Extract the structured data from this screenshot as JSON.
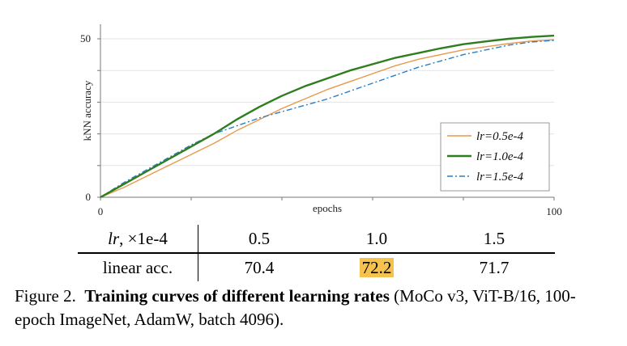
{
  "chart_data": {
    "type": "line",
    "xlabel": "epochs",
    "ylabel": "kNN accuracy",
    "xlim": [
      0,
      100
    ],
    "ylim": [
      0,
      50
    ],
    "x_ticks": [
      "0",
      "100"
    ],
    "y_ticks": [
      "0",
      "50"
    ],
    "legend_position": "bottom-right",
    "series": [
      {
        "name": "lr=0.5e-4",
        "label_var": "lr",
        "label_value": "=0.5e-4",
        "color": "#e8994a",
        "style": "solid",
        "x": [
          0,
          5,
          10,
          15,
          20,
          25,
          30,
          35,
          40,
          45,
          50,
          55,
          60,
          65,
          70,
          75,
          80,
          85,
          90,
          95,
          100
        ],
        "y": [
          0,
          3,
          6.5,
          10,
          13.5,
          17,
          21,
          24.5,
          28,
          31,
          34,
          36.5,
          39,
          41.5,
          43.5,
          45,
          46.5,
          47.5,
          48.5,
          49.3,
          49.7
        ]
      },
      {
        "name": "lr=1.0e-4",
        "label_var": "lr",
        "label_value": "=1.0e-4",
        "color": "#2e7d1e",
        "style": "solid",
        "x": [
          0,
          5,
          10,
          15,
          20,
          25,
          30,
          35,
          40,
          45,
          50,
          55,
          60,
          65,
          70,
          75,
          80,
          85,
          90,
          95,
          100
        ],
        "y": [
          0,
          4,
          8,
          12,
          16,
          20,
          24.5,
          28.5,
          32,
          35,
          37.5,
          40,
          42,
          44,
          45.5,
          47,
          48.3,
          49.2,
          50,
          50.6,
          51
        ]
      },
      {
        "name": "lr=1.5e-4",
        "label_var": "lr",
        "label_value": "=1.5e-4",
        "color": "#2a7fc7",
        "style": "dashdot",
        "x": [
          0,
          5,
          10,
          15,
          20,
          25,
          30,
          35,
          40,
          45,
          50,
          55,
          60,
          65,
          70,
          75,
          80,
          85,
          90,
          95,
          100
        ],
        "y": [
          0,
          4.5,
          8.5,
          12.5,
          16.5,
          20,
          22.5,
          25,
          27,
          29,
          31,
          33.5,
          36,
          38.5,
          41,
          43,
          45,
          46.5,
          48,
          49,
          49.5
        ]
      }
    ]
  },
  "table": {
    "header_var": "lr",
    "header_unit": ", ×1e-4",
    "header_values": [
      "0.5",
      "1.0",
      "1.5"
    ],
    "row_label": "linear acc.",
    "row_values": [
      "70.4",
      "72.2",
      "71.7"
    ],
    "highlight_index": 1
  },
  "caption": {
    "prefix": "Figure 2.",
    "bold": "Training curves of different learning rates",
    "rest": " (MoCo v3, ViT-B/16, 100-epoch ImageNet, AdamW, batch 4096)."
  }
}
